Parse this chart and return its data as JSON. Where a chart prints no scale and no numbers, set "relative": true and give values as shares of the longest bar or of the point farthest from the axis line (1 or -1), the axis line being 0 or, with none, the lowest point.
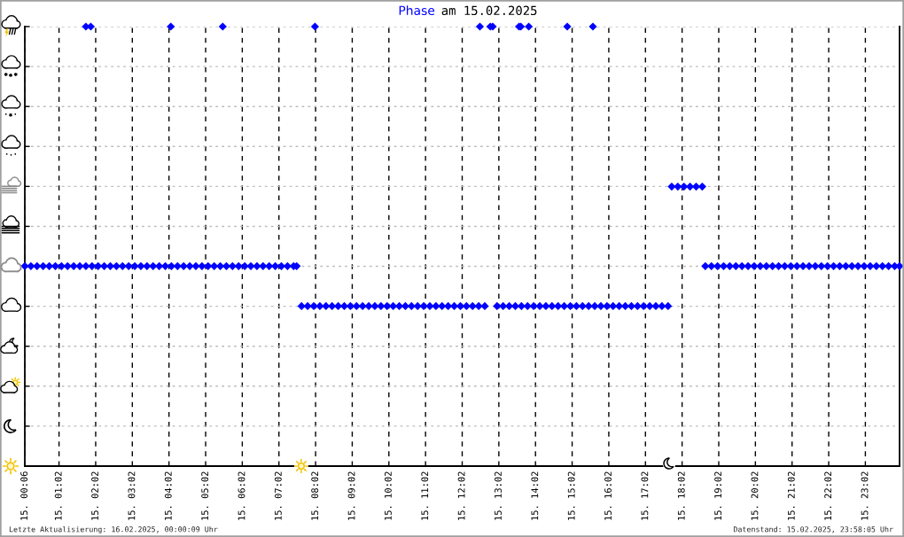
{
  "chart_data": {
    "type": "scatter",
    "title": "Phase am 15.02.2025",
    "relative": true,
    "color": "#0000ff",
    "marker": "diamond",
    "grid": true,
    "xlim": [
      "2025-02-15T00:06",
      "2025-02-15T23:58"
    ],
    "xticks": [
      {
        "value": "2025-02-15T00:06",
        "label": "15. 00:06"
      },
      {
        "value": "2025-02-15T01:02",
        "label": "15. 01:02"
      },
      {
        "value": "2025-02-15T02:02",
        "label": "15. 02:02"
      },
      {
        "value": "2025-02-15T03:02",
        "label": "15. 03:02"
      },
      {
        "value": "2025-02-15T04:02",
        "label": "15. 04:02"
      },
      {
        "value": "2025-02-15T05:02",
        "label": "15. 05:02"
      },
      {
        "value": "2025-02-15T06:02",
        "label": "15. 06:02"
      },
      {
        "value": "2025-02-15T07:02",
        "label": "15. 07:02"
      },
      {
        "value": "2025-02-15T08:02",
        "label": "15. 08:02"
      },
      {
        "value": "2025-02-15T09:02",
        "label": "15. 09:02"
      },
      {
        "value": "2025-02-15T10:02",
        "label": "15. 10:02"
      },
      {
        "value": "2025-02-15T11:02",
        "label": "15. 11:02"
      },
      {
        "value": "2025-02-15T12:02",
        "label": "15. 12:02"
      },
      {
        "value": "2025-02-15T13:02",
        "label": "15. 13:02"
      },
      {
        "value": "2025-02-15T14:02",
        "label": "15. 14:02"
      },
      {
        "value": "2025-02-15T15:02",
        "label": "15. 15:02"
      },
      {
        "value": "2025-02-15T16:02",
        "label": "15. 16:02"
      },
      {
        "value": "2025-02-15T17:02",
        "label": "15. 17:02"
      },
      {
        "value": "2025-02-15T18:02",
        "label": "15. 18:02"
      },
      {
        "value": "2025-02-15T19:02",
        "label": "15. 19:02"
      },
      {
        "value": "2025-02-15T20:02",
        "label": "15. 20:02"
      },
      {
        "value": "2025-02-15T21:02",
        "label": "15. 21:02"
      },
      {
        "value": "2025-02-15T22:02",
        "label": "15. 22:02"
      },
      {
        "value": "2025-02-15T23:02",
        "label": "15. 23:02"
      }
    ],
    "x": [
      "2025-02-15T00:06",
      "2025-02-15T00:16",
      "2025-02-15T00:26",
      "2025-02-15T00:36",
      "2025-02-15T00:46",
      "2025-02-15T00:56",
      "2025-02-15T01:06",
      "2025-02-15T01:16",
      "2025-02-15T01:26",
      "2025-02-15T01:36",
      "2025-02-15T01:46",
      "2025-02-15T01:46",
      "2025-02-15T01:54",
      "2025-02-15T01:56",
      "2025-02-15T02:06",
      "2025-02-15T02:16",
      "2025-02-15T02:26",
      "2025-02-15T02:36",
      "2025-02-15T02:46",
      "2025-02-15T02:56",
      "2025-02-15T03:06",
      "2025-02-15T03:16",
      "2025-02-15T03:26",
      "2025-02-15T03:36",
      "2025-02-15T03:46",
      "2025-02-15T03:56",
      "2025-02-15T04:05",
      "2025-02-15T04:06",
      "2025-02-15T04:16",
      "2025-02-15T04:26",
      "2025-02-15T04:36",
      "2025-02-15T04:46",
      "2025-02-15T04:56",
      "2025-02-15T05:06",
      "2025-02-15T05:16",
      "2025-02-15T05:26",
      "2025-02-15T05:30",
      "2025-02-15T05:36",
      "2025-02-15T05:46",
      "2025-02-15T05:56",
      "2025-02-15T06:06",
      "2025-02-15T06:16",
      "2025-02-15T06:26",
      "2025-02-15T06:36",
      "2025-02-15T06:46",
      "2025-02-15T06:56",
      "2025-02-15T07:06",
      "2025-02-15T07:16",
      "2025-02-15T07:26",
      "2025-02-15T07:31",
      "2025-02-15T07:39",
      "2025-02-15T07:49",
      "2025-02-15T07:59",
      "2025-02-15T08:01",
      "2025-02-15T08:09",
      "2025-02-15T08:19",
      "2025-02-15T08:29",
      "2025-02-15T08:39",
      "2025-02-15T08:49",
      "2025-02-15T08:59",
      "2025-02-15T09:09",
      "2025-02-15T09:19",
      "2025-02-15T09:29",
      "2025-02-15T09:39",
      "2025-02-15T09:49",
      "2025-02-15T09:59",
      "2025-02-15T10:09",
      "2025-02-15T10:19",
      "2025-02-15T10:29",
      "2025-02-15T10:39",
      "2025-02-15T10:49",
      "2025-02-15T10:59",
      "2025-02-15T11:09",
      "2025-02-15T11:19",
      "2025-02-15T11:29",
      "2025-02-15T11:39",
      "2025-02-15T11:49",
      "2025-02-15T11:59",
      "2025-02-15T12:09",
      "2025-02-15T12:19",
      "2025-02-15T12:29",
      "2025-02-15T12:31",
      "2025-02-15T12:39",
      "2025-02-15T12:48",
      "2025-02-15T12:52",
      "2025-02-15T12:59",
      "2025-02-15T13:09",
      "2025-02-15T13:19",
      "2025-02-15T13:29",
      "2025-02-15T13:35",
      "2025-02-15T13:38",
      "2025-02-15T13:39",
      "2025-02-15T13:49",
      "2025-02-15T13:51",
      "2025-02-15T13:59",
      "2025-02-15T14:09",
      "2025-02-15T14:19",
      "2025-02-15T14:29",
      "2025-02-15T14:39",
      "2025-02-15T14:49",
      "2025-02-15T14:54",
      "2025-02-15T14:59",
      "2025-02-15T15:09",
      "2025-02-15T15:19",
      "2025-02-15T15:29",
      "2025-02-15T15:36",
      "2025-02-15T15:39",
      "2025-02-15T15:49",
      "2025-02-15T15:59",
      "2025-02-15T16:09",
      "2025-02-15T16:19",
      "2025-02-15T16:29",
      "2025-02-15T16:39",
      "2025-02-15T16:49",
      "2025-02-15T16:59",
      "2025-02-15T17:09",
      "2025-02-15T17:19",
      "2025-02-15T17:29",
      "2025-02-15T17:39",
      "2025-02-15T17:45",
      "2025-02-15T17:55",
      "2025-02-15T18:05",
      "2025-02-15T18:15",
      "2025-02-15T18:25",
      "2025-02-15T18:35",
      "2025-02-15T18:40",
      "2025-02-15T18:50",
      "2025-02-15T19:00",
      "2025-02-15T19:10",
      "2025-02-15T19:20",
      "2025-02-15T19:30",
      "2025-02-15T19:40",
      "2025-02-15T19:50",
      "2025-02-15T20:00",
      "2025-02-15T20:10",
      "2025-02-15T20:20",
      "2025-02-15T20:30",
      "2025-02-15T20:40",
      "2025-02-15T20:50",
      "2025-02-15T21:00",
      "2025-02-15T21:10",
      "2025-02-15T21:20",
      "2025-02-15T21:30",
      "2025-02-15T21:40",
      "2025-02-15T21:50",
      "2025-02-15T22:00",
      "2025-02-15T22:10",
      "2025-02-15T22:20",
      "2025-02-15T22:30",
      "2025-02-15T22:40",
      "2025-02-15T22:50",
      "2025-02-15T23:00",
      "2025-02-15T23:10",
      "2025-02-15T23:20",
      "2025-02-15T23:30",
      "2025-02-15T23:40",
      "2025-02-15T23:50",
      "2025-02-15T23:58"
    ],
    "values": [
      0.455,
      0.455,
      0.455,
      0.455,
      0.455,
      0.455,
      0.455,
      0.455,
      0.455,
      0.455,
      0.455,
      1,
      1,
      0.455,
      0.455,
      0.455,
      0.455,
      0.455,
      0.455,
      0.455,
      0.455,
      0.455,
      0.455,
      0.455,
      0.455,
      0.455,
      1,
      0.455,
      0.455,
      0.455,
      0.455,
      0.455,
      0.455,
      0.455,
      0.455,
      0.455,
      1,
      0.455,
      0.455,
      0.455,
      0.455,
      0.455,
      0.455,
      0.455,
      0.455,
      0.455,
      0.455,
      0.455,
      0.455,
      0.455,
      0.364,
      0.364,
      0.364,
      1,
      0.364,
      0.364,
      0.364,
      0.364,
      0.364,
      0.364,
      0.364,
      0.364,
      0.364,
      0.364,
      0.364,
      0.364,
      0.364,
      0.364,
      0.364,
      0.364,
      0.364,
      0.364,
      0.364,
      0.364,
      0.364,
      0.364,
      0.364,
      0.364,
      0.364,
      0.364,
      0.364,
      1,
      0.364,
      1,
      1,
      0.364,
      0.364,
      0.364,
      0.364,
      1,
      1,
      0.364,
      0.364,
      1,
      0.364,
      0.364,
      0.364,
      0.364,
      0.364,
      0.364,
      1,
      0.364,
      0.364,
      0.364,
      0.364,
      1,
      0.364,
      0.364,
      0.364,
      0.364,
      0.364,
      0.364,
      0.364,
      0.364,
      0.364,
      0.364,
      0.364,
      0.364,
      0.364,
      0.636,
      0.636,
      0.636,
      0.636,
      0.636,
      0.636,
      0.455,
      0.455,
      0.455,
      0.455,
      0.455,
      0.455,
      0.455,
      0.455,
      0.455,
      0.455,
      0.455,
      0.455,
      0.455,
      0.455,
      0.455,
      0.455,
      0.455,
      0.455,
      0.455,
      0.455,
      0.455,
      0.455,
      0.455,
      0.455,
      0.455,
      0.455,
      0.455,
      0.455,
      0.455,
      0.455,
      0.455,
      0.455,
      0.455
    ],
    "annotations": [
      "Letzte Aktualisierung: 16.02.2025, 00:00:09 Uhr",
      "Datenstand: 15.02.2025, 23:58:05 Uhr"
    ]
  }
}
